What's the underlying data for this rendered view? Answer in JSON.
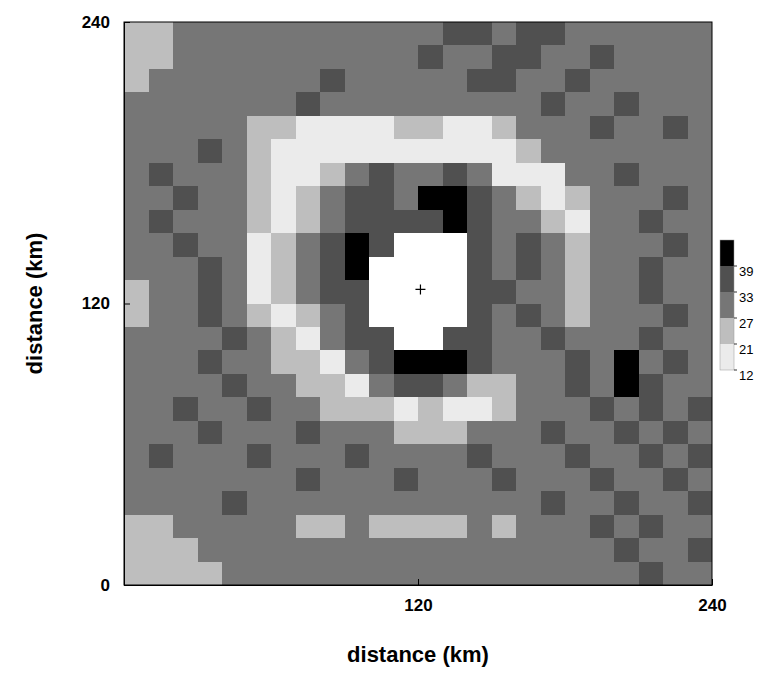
{
  "chart_data": {
    "type": "heatmap",
    "xlabel": "distance (km)",
    "ylabel": "distance (km)",
    "xlim": [
      0,
      240
    ],
    "ylim": [
      0,
      240
    ],
    "xticks": [
      120,
      240
    ],
    "yticks": [
      0,
      120,
      240
    ],
    "x": [
      5,
      15,
      25,
      35,
      45,
      55,
      65,
      75,
      85,
      95,
      105,
      115,
      125,
      135,
      145,
      155,
      165,
      175,
      185,
      195,
      205,
      215,
      225,
      235
    ],
    "y": [
      235,
      225,
      215,
      205,
      195,
      185,
      175,
      165,
      155,
      145,
      135,
      125,
      115,
      105,
      95,
      85,
      75,
      65,
      55,
      45,
      35,
      25,
      15,
      5
    ],
    "z": [
      [
        24,
        24,
        30,
        30,
        30,
        30,
        30,
        30,
        30,
        30,
        30,
        30,
        30,
        36,
        36,
        30,
        36,
        36,
        30,
        30,
        30,
        30,
        30,
        30
      ],
      [
        24,
        24,
        30,
        30,
        30,
        30,
        30,
        30,
        30,
        30,
        30,
        30,
        36,
        30,
        30,
        36,
        36,
        30,
        30,
        36,
        30,
        30,
        30,
        30
      ],
      [
        24,
        30,
        30,
        30,
        30,
        30,
        30,
        30,
        36,
        30,
        30,
        30,
        30,
        30,
        36,
        36,
        30,
        30,
        36,
        30,
        30,
        30,
        30,
        30
      ],
      [
        30,
        30,
        30,
        30,
        30,
        30,
        30,
        36,
        30,
        30,
        30,
        30,
        30,
        30,
        30,
        30,
        30,
        36,
        30,
        30,
        36,
        30,
        30,
        30
      ],
      [
        30,
        30,
        30,
        30,
        30,
        24,
        24,
        15,
        15,
        15,
        15,
        24,
        24,
        15,
        15,
        24,
        30,
        30,
        30,
        36,
        30,
        30,
        36,
        30
      ],
      [
        30,
        30,
        30,
        36,
        30,
        24,
        15,
        15,
        15,
        15,
        15,
        15,
        15,
        15,
        15,
        15,
        24,
        30,
        30,
        30,
        30,
        30,
        30,
        30
      ],
      [
        30,
        36,
        30,
        30,
        30,
        24,
        15,
        15,
        24,
        30,
        36,
        30,
        30,
        36,
        30,
        15,
        15,
        15,
        30,
        30,
        36,
        30,
        30,
        30
      ],
      [
        30,
        30,
        36,
        30,
        30,
        24,
        15,
        24,
        30,
        36,
        36,
        30,
        42,
        42,
        36,
        30,
        24,
        15,
        24,
        30,
        30,
        30,
        36,
        30
      ],
      [
        30,
        36,
        30,
        30,
        30,
        24,
        15,
        24,
        30,
        36,
        36,
        36,
        36,
        42,
        36,
        30,
        30,
        24,
        15,
        30,
        30,
        36,
        30,
        30
      ],
      [
        30,
        30,
        36,
        30,
        30,
        15,
        24,
        30,
        36,
        42,
        36,
        8,
        8,
        8,
        36,
        30,
        36,
        30,
        24,
        30,
        30,
        30,
        36,
        30
      ],
      [
        30,
        30,
        30,
        36,
        30,
        15,
        24,
        30,
        36,
        42,
        8,
        8,
        8,
        8,
        36,
        30,
        36,
        30,
        24,
        30,
        30,
        36,
        30,
        30
      ],
      [
        24,
        30,
        30,
        36,
        30,
        15,
        24,
        30,
        36,
        36,
        8,
        8,
        8,
        8,
        36,
        36,
        30,
        30,
        24,
        30,
        30,
        36,
        30,
        30
      ],
      [
        24,
        30,
        30,
        36,
        30,
        24,
        15,
        24,
        30,
        36,
        8,
        8,
        8,
        8,
        36,
        30,
        36,
        30,
        24,
        30,
        30,
        30,
        36,
        30
      ],
      [
        30,
        30,
        30,
        30,
        36,
        30,
        24,
        15,
        30,
        36,
        36,
        8,
        8,
        36,
        36,
        30,
        30,
        36,
        30,
        30,
        30,
        36,
        30,
        30
      ],
      [
        30,
        30,
        30,
        36,
        30,
        30,
        24,
        24,
        15,
        30,
        36,
        42,
        42,
        42,
        36,
        30,
        30,
        30,
        36,
        30,
        42,
        30,
        36,
        30
      ],
      [
        30,
        30,
        30,
        30,
        36,
        30,
        30,
        24,
        24,
        15,
        30,
        36,
        36,
        30,
        24,
        24,
        30,
        30,
        36,
        30,
        42,
        36,
        30,
        30
      ],
      [
        30,
        30,
        36,
        30,
        30,
        36,
        30,
        30,
        24,
        24,
        24,
        15,
        24,
        15,
        15,
        24,
        30,
        30,
        30,
        36,
        30,
        36,
        30,
        36
      ],
      [
        30,
        30,
        30,
        36,
        30,
        30,
        30,
        36,
        30,
        30,
        30,
        24,
        24,
        24,
        30,
        30,
        30,
        36,
        30,
        30,
        36,
        30,
        36,
        30
      ],
      [
        30,
        36,
        30,
        30,
        30,
        36,
        30,
        30,
        30,
        36,
        30,
        30,
        30,
        30,
        36,
        30,
        30,
        30,
        36,
        30,
        30,
        36,
        30,
        36
      ],
      [
        30,
        30,
        30,
        30,
        30,
        30,
        30,
        36,
        30,
        30,
        30,
        36,
        30,
        30,
        30,
        36,
        30,
        30,
        30,
        36,
        30,
        30,
        36,
        30
      ],
      [
        30,
        30,
        30,
        30,
        36,
        30,
        30,
        30,
        30,
        30,
        30,
        30,
        30,
        30,
        30,
        30,
        30,
        36,
        30,
        30,
        36,
        30,
        30,
        36
      ],
      [
        24,
        24,
        30,
        30,
        30,
        30,
        30,
        24,
        24,
        30,
        24,
        24,
        24,
        24,
        30,
        24,
        30,
        30,
        30,
        36,
        30,
        36,
        30,
        30
      ],
      [
        24,
        24,
        24,
        30,
        30,
        30,
        30,
        30,
        30,
        30,
        30,
        30,
        30,
        30,
        30,
        30,
        30,
        30,
        30,
        30,
        36,
        30,
        30,
        36
      ],
      [
        24,
        24,
        24,
        24,
        30,
        30,
        30,
        30,
        30,
        30,
        30,
        30,
        30,
        30,
        30,
        30,
        30,
        30,
        30,
        30,
        30,
        36,
        30,
        30
      ]
    ],
    "colors": [
      "#ffffff",
      "#ebebeb",
      "#bebebe",
      "#767676",
      "#505050",
      "#000000"
    ],
    "colorbar": {
      "range": [
        12,
        45
      ],
      "ticks": [
        12,
        21,
        27,
        33,
        39
      ]
    },
    "center": [
      121,
      126
    ]
  }
}
